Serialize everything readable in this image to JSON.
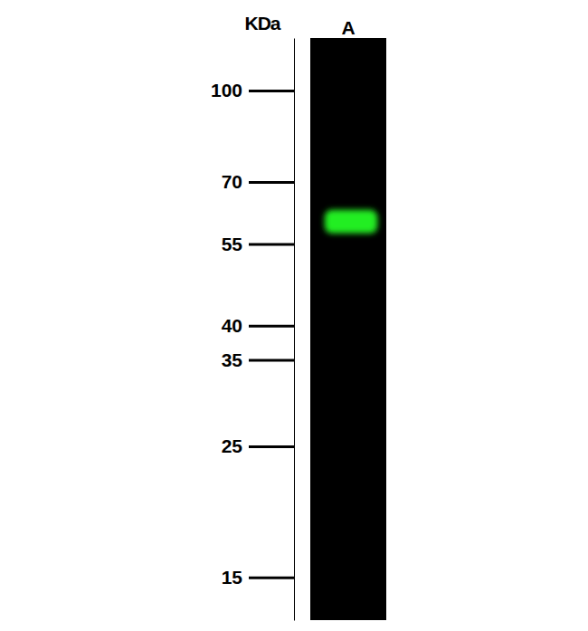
{
  "chart_data": {
    "type": "blot",
    "y_label": "KDa",
    "categories": [
      "A"
    ],
    "values": [
      60
    ],
    "color": "#22ee22",
    "log": "y",
    "ylim": [
      12.7,
      122.7
    ],
    "yticks": [
      15,
      25,
      35,
      40,
      55,
      70,
      100
    ]
  }
}
